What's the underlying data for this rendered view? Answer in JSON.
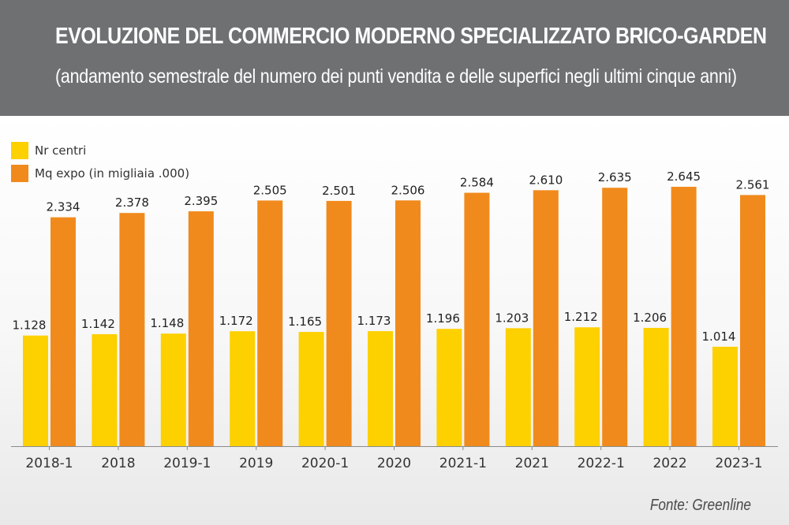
{
  "header": {
    "title": "EVOLUZIONE DEL COMMERCIO MODERNO SPECIALIZZATO BRICO-GARDEN",
    "subtitle": "(andamento semestrale del numero dei punti vendita e delle superfici negli ultimi cinque anni)"
  },
  "legend": {
    "items": [
      {
        "label": "Nr centri",
        "color": "#fdd000"
      },
      {
        "label": "Mq expo (in migliaia .000)",
        "color": "#f18a1c"
      }
    ]
  },
  "source": "Fonte: Greenline",
  "chart_data": {
    "type": "bar",
    "categories": [
      "2018-1",
      "2018",
      "2019-1",
      "2019",
      "2020-1",
      "2020",
      "2021-1",
      "2021",
      "2022-1",
      "2022",
      "2023-1"
    ],
    "series": [
      {
        "name": "Nr centri",
        "color": "#fdd000",
        "values": [
          1128,
          1142,
          1148,
          1172,
          1165,
          1173,
          1196,
          1203,
          1212,
          1206,
          1014
        ],
        "labels": [
          "1.128",
          "1.142",
          "1.148",
          "1.172",
          "1.165",
          "1.173",
          "1.196",
          "1.203",
          "1.212",
          "1.206",
          "1.014"
        ]
      },
      {
        "name": "Mq expo (in migliaia .000)",
        "color": "#f18a1c",
        "values": [
          2334,
          2378,
          2395,
          2505,
          2501,
          2506,
          2584,
          2610,
          2635,
          2645,
          2561
        ],
        "labels": [
          "2.334",
          "2.378",
          "2.395",
          "2.505",
          "2.501",
          "2.506",
          "2.584",
          "2.610",
          "2.635",
          "2.645",
          "2.561"
        ]
      }
    ],
    "legend_position": "top-left",
    "grid": false
  }
}
